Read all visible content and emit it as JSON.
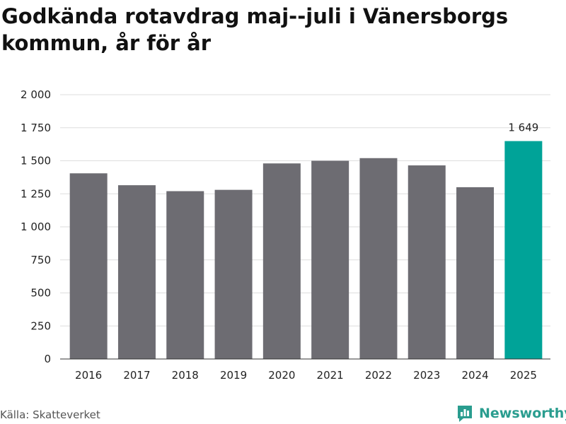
{
  "title": "Godkända rotavdrag maj--juli i Vänersborgs kommun, år för år",
  "source": "Källa: Skatteverket",
  "brand": {
    "name": "Newsworthy",
    "icon": "bar-chart-icon",
    "color": "#2a9d8f"
  },
  "colors": {
    "bar": "#6d6c72",
    "highlight": "#00a398",
    "grid": "#dddddd"
  },
  "chart_data": {
    "type": "bar",
    "categories": [
      "2016",
      "2017",
      "2018",
      "2019",
      "2020",
      "2021",
      "2022",
      "2023",
      "2024",
      "2025"
    ],
    "values": [
      1405,
      1315,
      1270,
      1280,
      1480,
      1500,
      1520,
      1465,
      1300,
      1649
    ],
    "highlight_index": 9,
    "data_labels": [
      {
        "index": 9,
        "text": "1 649"
      }
    ],
    "ylim": [
      0,
      2000
    ],
    "yticks": [
      0,
      250,
      500,
      750,
      1000,
      1250,
      1500,
      1750,
      2000
    ],
    "ytick_labels": [
      "0",
      "250",
      "500",
      "750",
      "1 000",
      "1 250",
      "1 500",
      "1 750",
      "2 000"
    ],
    "grid": true,
    "xlabel": "",
    "ylabel": ""
  }
}
